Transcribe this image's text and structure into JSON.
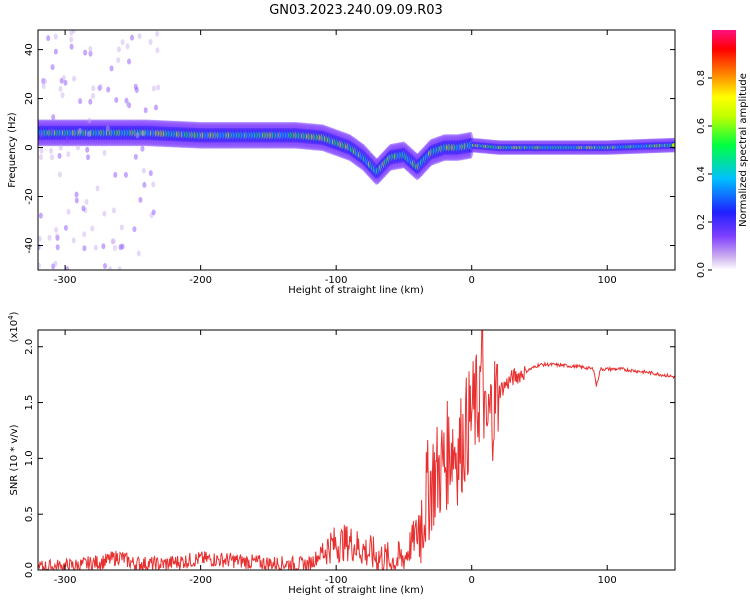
{
  "title": "GN03.2023.240.09.09.R03",
  "colors": {
    "snr_line": "#e83030",
    "spectrogram_background": "#ffffff",
    "axes": "#000000"
  },
  "chart_data": [
    {
      "type": "heatmap",
      "xlabel": "Height of straight line (km)",
      "ylabel": "Frequency (Hz)",
      "xlim": [
        -320,
        150
      ],
      "ylim": [
        -50,
        48
      ],
      "x_ticks": [
        "-300",
        "-200",
        "-100",
        "0",
        "100"
      ],
      "y_ticks": [
        "-40",
        "-20",
        "0",
        "20",
        "40"
      ],
      "colorbar": {
        "label": "Normalized spectral amplitude",
        "range": [
          0.0,
          1.0
        ],
        "ticks": [
          "0.0",
          "0.2",
          "0.4",
          "0.6",
          "0.8"
        ],
        "colormap": [
          "#ffffff",
          "#c8a8ee",
          "#8040ff",
          "#2020ff",
          "#00c0ff",
          "#00ff40",
          "#c0ff00",
          "#ffff00",
          "#ff8000",
          "#ff0000",
          "#ff1080"
        ]
      },
      "ridge": {
        "x": [
          -320,
          -280,
          -240,
          -200,
          -160,
          -130,
          -110,
          -100,
          -90,
          -80,
          -70,
          -60,
          -50,
          -40,
          -30,
          -20,
          -10,
          0,
          20,
          50,
          100,
          150
        ],
        "y": [
          6,
          6,
          6,
          5,
          5,
          5,
          4,
          2,
          0,
          -4,
          -10,
          -4,
          -3,
          -8,
          -2,
          0,
          0,
          1,
          0,
          0,
          0,
          1
        ]
      },
      "grid": false
    },
    {
      "type": "line",
      "xlabel": "Height of straight line (km)",
      "ylabel": "SNR (10 * v/v)",
      "y_multiplier": "(x10",
      "y_multiplier_exp": "4",
      "y_multiplier_close": ")",
      "xlim": [
        -320,
        150
      ],
      "ylim": [
        0,
        2.15
      ],
      "x_ticks": [
        "-300",
        "-200",
        "-100",
        "0",
        "100"
      ],
      "y_ticks": [
        "0.0",
        "0.5",
        "1.0",
        "1.5",
        "2.0"
      ],
      "series": [
        {
          "x": [
            -320,
            -290,
            -270,
            -260,
            -250,
            -230,
            -200,
            -180,
            -150,
            -120,
            -105,
            -90,
            -80,
            -70,
            -60,
            -50,
            -40,
            -30,
            -20,
            -15,
            -10,
            0,
            5,
            8,
            10,
            15,
            20,
            30,
            40,
            50,
            60,
            80,
            90,
            92,
            95,
            110,
            130,
            150
          ],
          "y": [
            0.02,
            0.04,
            0.08,
            0.12,
            0.06,
            0.05,
            0.1,
            0.09,
            0.06,
            0.05,
            0.22,
            0.25,
            0.18,
            0.12,
            0.08,
            0.1,
            0.35,
            0.8,
            0.95,
            1.15,
            1.05,
            1.4,
            1.5,
            1.9,
            1.2,
            1.45,
            1.6,
            1.72,
            1.78,
            1.84,
            1.84,
            1.82,
            1.8,
            1.65,
            1.8,
            1.8,
            1.77,
            1.73
          ]
        }
      ],
      "grid": false
    }
  ]
}
